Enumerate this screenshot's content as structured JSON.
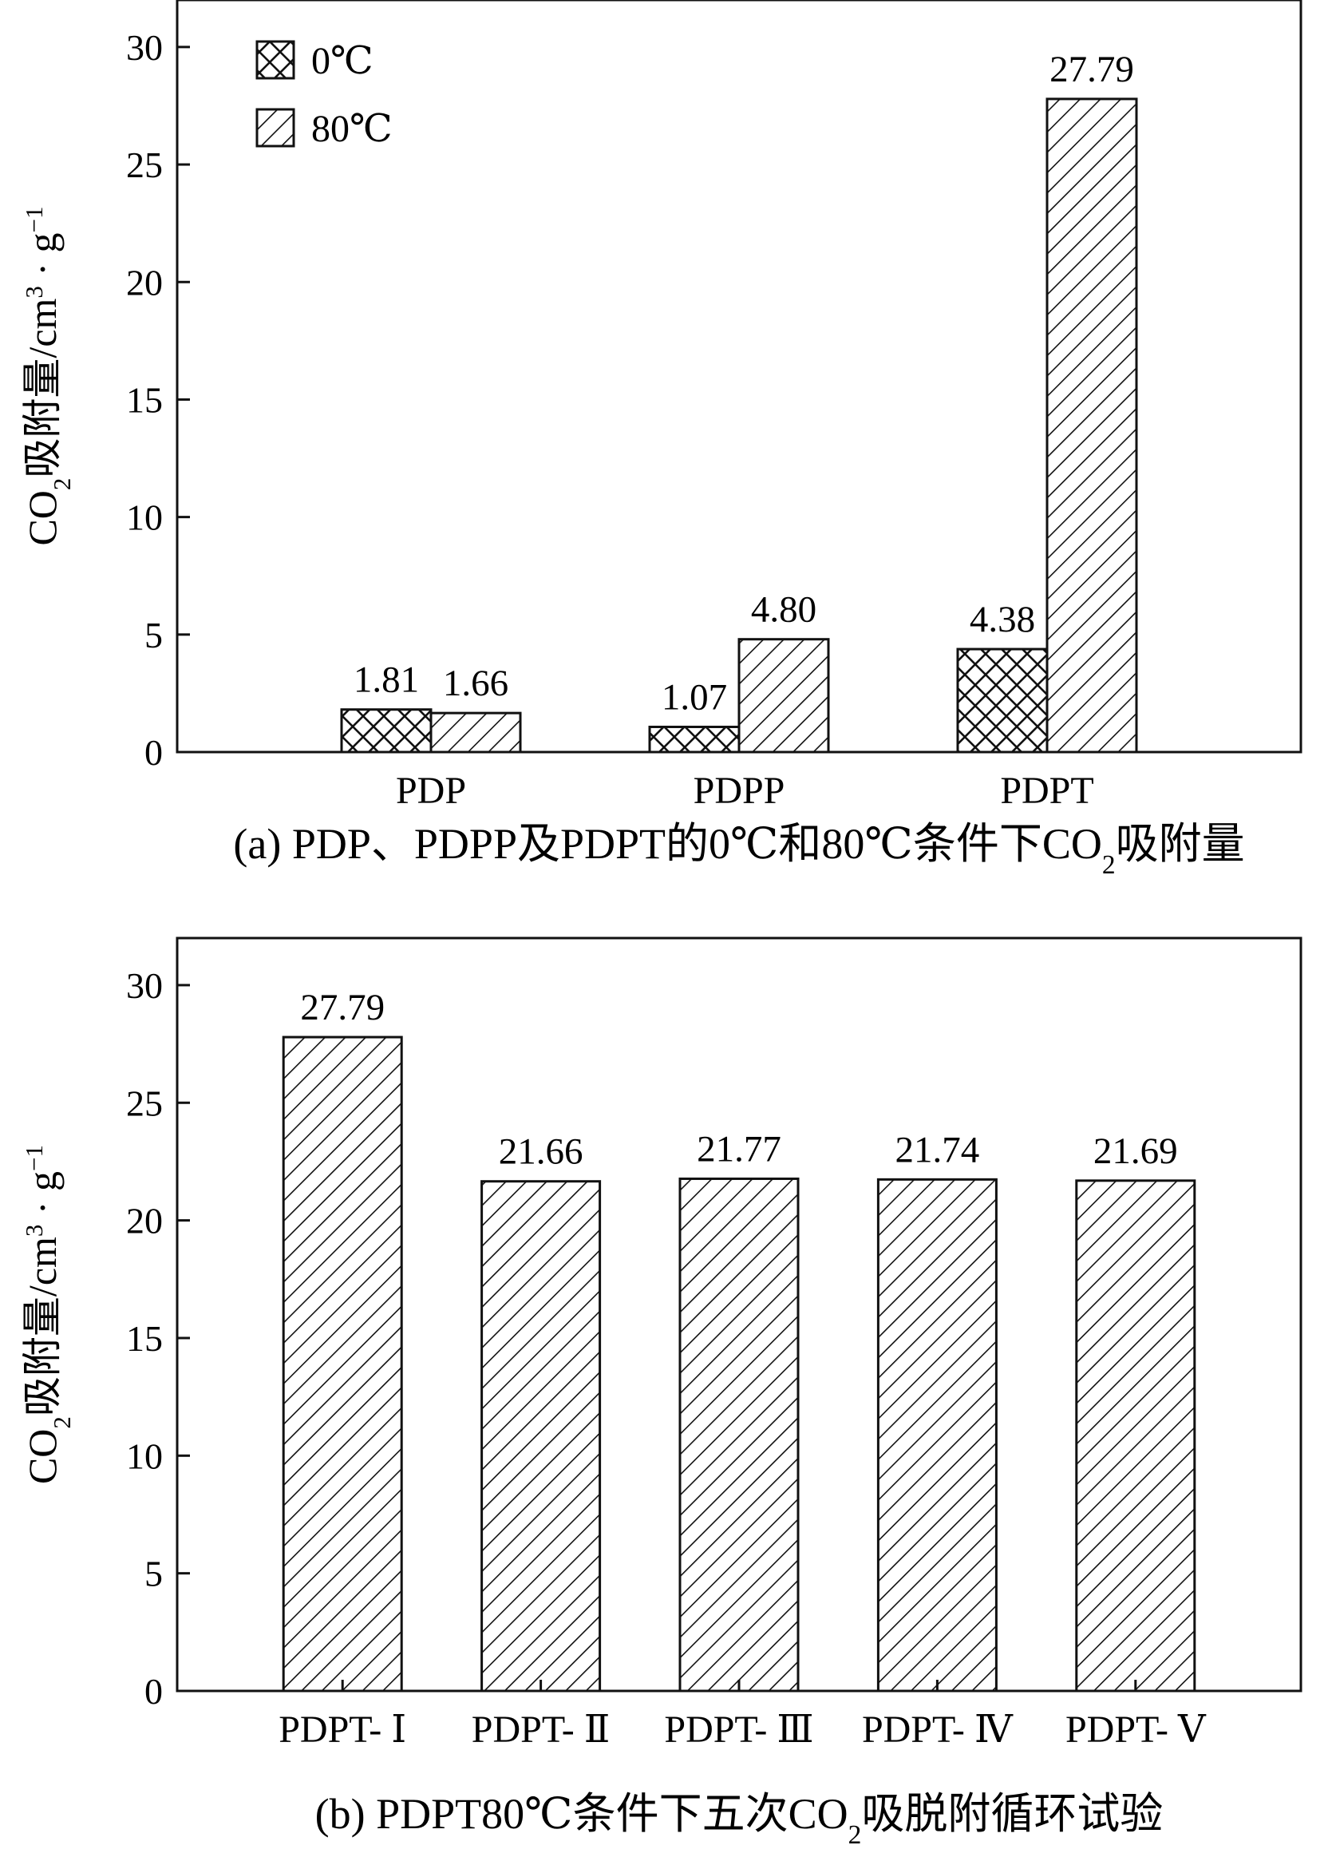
{
  "chart_data": [
    {
      "type": "bar",
      "panel": "a",
      "caption_parts": [
        "(a) PDP、PDPP及PDPT的0℃和80℃条件下CO",
        "2",
        "吸附量"
      ],
      "ylabel_parts": [
        "CO",
        "2",
        "吸附量/cm",
        "3",
        " · g",
        "−1"
      ],
      "ylim": [
        0,
        32
      ],
      "yticks": [
        0,
        5,
        10,
        15,
        20,
        25,
        30
      ],
      "categories": [
        "PDP",
        "PDPP",
        "PDPT"
      ],
      "legend_position": "top-left",
      "grid": false,
      "series": [
        {
          "name": "0℃",
          "pattern": "crosshatch",
          "values": [
            1.81,
            1.07,
            4.38
          ],
          "labels": [
            "1.81",
            "1.07",
            "4.38"
          ]
        },
        {
          "name": "80℃",
          "pattern": "diagonal",
          "values": [
            1.66,
            4.8,
            27.79
          ],
          "labels": [
            "1.66",
            "4.80",
            "27.79"
          ]
        }
      ]
    },
    {
      "type": "bar",
      "panel": "b",
      "caption_parts": [
        "(b) PDPT80℃条件下五次CO",
        "2",
        "吸脱附循环试验"
      ],
      "ylabel_parts": [
        "CO",
        "2",
        "吸附量/cm",
        "3",
        " · g",
        "−1"
      ],
      "ylim": [
        0,
        32
      ],
      "yticks": [
        0,
        5,
        10,
        15,
        20,
        25,
        30
      ],
      "categories": [
        "PDPT- Ⅰ",
        "PDPT- Ⅱ",
        "PDPT- Ⅲ",
        "PDPT- Ⅳ",
        "PDPT- Ⅴ"
      ],
      "grid": false,
      "series": [
        {
          "pattern": "diagonal",
          "values": [
            27.79,
            21.66,
            21.77,
            21.74,
            21.69
          ],
          "labels": [
            "27.79",
            "21.66",
            "21.77",
            "21.74",
            "21.69"
          ]
        }
      ]
    }
  ]
}
